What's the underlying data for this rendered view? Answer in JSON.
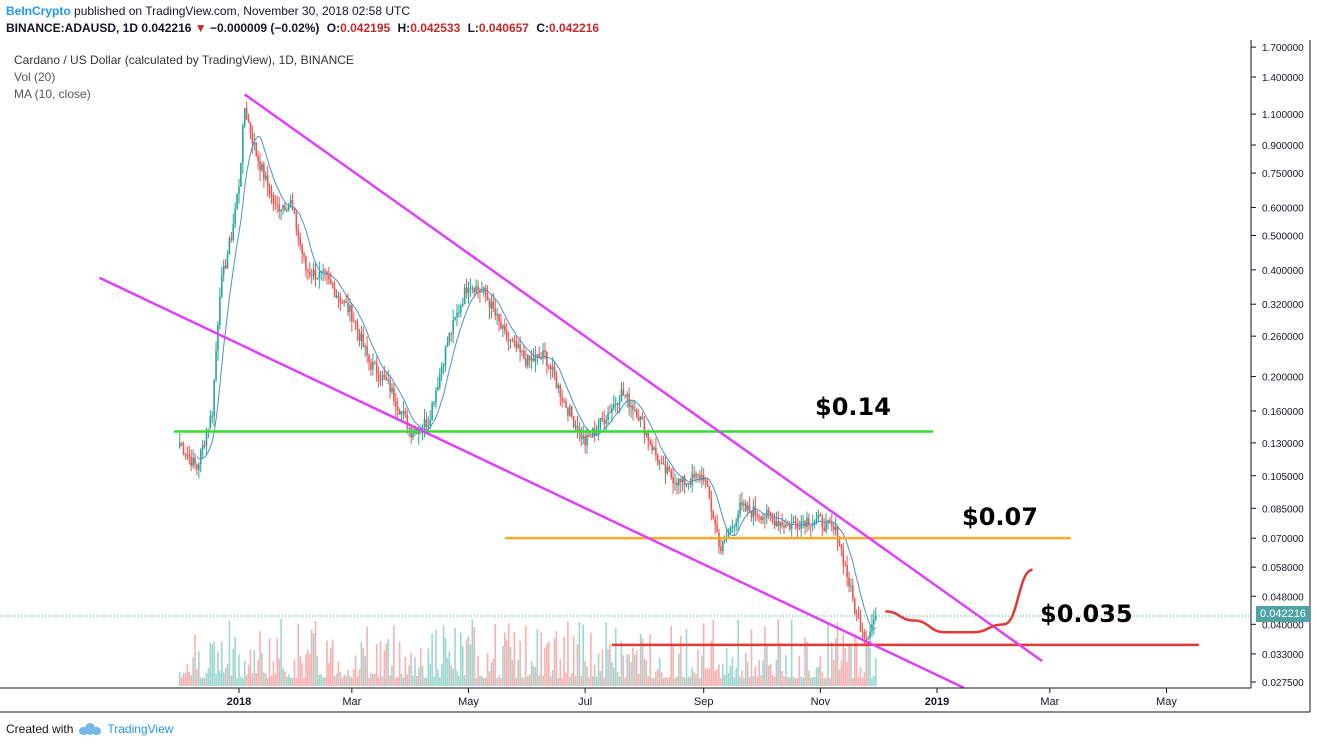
{
  "header": {
    "brand": "BeInCrypto",
    "published": "published on TradingView.com, November 30, 2018 02:58 UTC"
  },
  "symbol_line": {
    "symbol": "BINANCE:ADAUSD, 1D",
    "last": "0.042216",
    "arrow": "▼",
    "change": "−0.000009 (−0.02%)",
    "o_label": "O:",
    "o": "0.042195",
    "h_label": "H:",
    "h": "0.042533",
    "l_label": "L:",
    "l": "0.040657",
    "c_label": "C:",
    "c": "0.042216"
  },
  "legend": {
    "title": "Cardano / US Dollar (calculated by TradingView), 1D, BINANCE",
    "vol": "Vol (20)",
    "ma": "MA (10, close)"
  },
  "footer": {
    "created_with": "Created with",
    "brand": "TradingView"
  },
  "current_price_label": "0.042216",
  "colors": {
    "up": "#26a69a",
    "down": "#ef5350",
    "ma": "#4d90c8",
    "channel": "#e040fb",
    "support_green": "#33dd33",
    "level_orange": "#ffa726",
    "level_red": "#e53935",
    "projection": "#e53935"
  },
  "chart_data": {
    "type": "candlestick",
    "scale": "log",
    "price_axis_ticks": [
      "1.700000",
      "1.400000",
      "1.100000",
      "0.900000",
      "0.750000",
      "0.600000",
      "0.500000",
      "0.400000",
      "0.320000",
      "0.260000",
      "0.200000",
      "0.160000",
      "0.130000",
      "0.105000",
      "0.085000",
      "0.070000",
      "0.058000",
      "0.048000",
      "0.040000",
      "0.033000",
      "0.027500"
    ],
    "time_axis_ticks": [
      "2018",
      "Mar",
      "May",
      "Jul",
      "Sep",
      "Nov",
      "2019",
      "Mar",
      "May"
    ],
    "close_path": [
      {
        "date": "2017-12-01",
        "price": 0.13
      },
      {
        "date": "2017-12-10",
        "price": 0.11
      },
      {
        "date": "2017-12-18",
        "price": 0.16
      },
      {
        "date": "2017-12-22",
        "price": 0.35
      },
      {
        "date": "2017-12-28",
        "price": 0.5
      },
      {
        "date": "2018-01-01",
        "price": 0.7
      },
      {
        "date": "2018-01-04",
        "price": 1.15
      },
      {
        "date": "2018-01-10",
        "price": 0.85
      },
      {
        "date": "2018-01-20",
        "price": 0.6
      },
      {
        "date": "2018-01-28",
        "price": 0.62
      },
      {
        "date": "2018-02-05",
        "price": 0.4
      },
      {
        "date": "2018-02-15",
        "price": 0.38
      },
      {
        "date": "2018-03-01",
        "price": 0.3
      },
      {
        "date": "2018-03-10",
        "price": 0.22
      },
      {
        "date": "2018-03-20",
        "price": 0.19
      },
      {
        "date": "2018-04-01",
        "price": 0.14
      },
      {
        "date": "2018-04-10",
        "price": 0.15
      },
      {
        "date": "2018-04-20",
        "price": 0.25
      },
      {
        "date": "2018-05-01",
        "price": 0.37
      },
      {
        "date": "2018-05-10",
        "price": 0.34
      },
      {
        "date": "2018-05-20",
        "price": 0.26
      },
      {
        "date": "2018-06-01",
        "price": 0.22
      },
      {
        "date": "2018-06-10",
        "price": 0.23
      },
      {
        "date": "2018-06-20",
        "price": 0.17
      },
      {
        "date": "2018-07-01",
        "price": 0.13
      },
      {
        "date": "2018-07-10",
        "price": 0.15
      },
      {
        "date": "2018-07-20",
        "price": 0.18
      },
      {
        "date": "2018-07-28",
        "price": 0.16
      },
      {
        "date": "2018-08-10",
        "price": 0.11
      },
      {
        "date": "2018-08-20",
        "price": 0.1
      },
      {
        "date": "2018-09-01",
        "price": 0.105
      },
      {
        "date": "2018-09-10",
        "price": 0.065
      },
      {
        "date": "2018-09-20",
        "price": 0.085
      },
      {
        "date": "2018-10-01",
        "price": 0.082
      },
      {
        "date": "2018-10-15",
        "price": 0.076
      },
      {
        "date": "2018-10-25",
        "price": 0.079
      },
      {
        "date": "2018-11-01",
        "price": 0.078
      },
      {
        "date": "2018-11-10",
        "price": 0.072
      },
      {
        "date": "2018-11-20",
        "price": 0.042
      },
      {
        "date": "2018-11-25",
        "price": 0.037
      },
      {
        "date": "2018-11-30",
        "price": 0.0422
      }
    ],
    "horizontal_levels": [
      {
        "label": "$0.14",
        "price": 0.14,
        "color": "#33dd33"
      },
      {
        "label": "$0.07",
        "price": 0.07,
        "color": "#ffa726"
      },
      {
        "label": "$0.035",
        "price": 0.035,
        "color": "#e53935"
      }
    ],
    "channel_lines": [
      {
        "name": "upper",
        "from": {
          "date": "2018-01-04",
          "price": 1.25
        },
        "to": {
          "date": "2019-02-25",
          "price": 0.0315
        }
      },
      {
        "name": "lower",
        "from": {
          "date": "2017-10-20",
          "price": 0.38
        },
        "to": {
          "date": "2019-01-15",
          "price": 0.0265
        }
      }
    ],
    "projection": [
      {
        "date": "2018-12-05",
        "price": 0.0435
      },
      {
        "date": "2018-12-20",
        "price": 0.041
      },
      {
        "date": "2019-01-05",
        "price": 0.038
      },
      {
        "date": "2019-01-20",
        "price": 0.038
      },
      {
        "date": "2019-02-05",
        "price": 0.04
      },
      {
        "date": "2019-02-20",
        "price": 0.057
      }
    ]
  }
}
